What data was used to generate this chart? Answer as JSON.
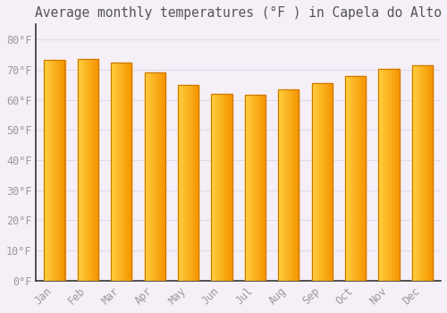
{
  "title": "Average monthly temperatures (°F ) in Capela do Alto",
  "months": [
    "Jan",
    "Feb",
    "Mar",
    "Apr",
    "May",
    "Jun",
    "Jul",
    "Aug",
    "Sep",
    "Oct",
    "Nov",
    "Dec"
  ],
  "values": [
    73.3,
    73.4,
    72.3,
    69.0,
    64.8,
    62.0,
    61.8,
    63.5,
    65.6,
    68.0,
    70.3,
    71.3
  ],
  "bar_color_left": "#FFD040",
  "bar_color_right": "#F59500",
  "bar_color_edge": "#CC7700",
  "background_color": "#F5F0F8",
  "grid_color": "#E0DCE8",
  "ytick_labels": [
    "0°F",
    "10°F",
    "20°F",
    "30°F",
    "40°F",
    "50°F",
    "60°F",
    "70°F",
    "80°F"
  ],
  "ytick_values": [
    0,
    10,
    20,
    30,
    40,
    50,
    60,
    70,
    80
  ],
  "ylim": [
    0,
    85
  ],
  "title_fontsize": 10.5,
  "tick_fontsize": 8.5,
  "font_color": "#999999",
  "title_color": "#555555"
}
